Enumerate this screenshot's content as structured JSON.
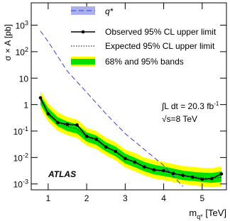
{
  "chart_data": {
    "type": "limit",
    "ylabel": "σ × A [pb]",
    "xlabel": {
      "main": "m",
      "sub": "q*",
      "unit": " [TeV]"
    },
    "xlim": [
      0.56,
      5.63
    ],
    "xticks": [
      1,
      2,
      3,
      4,
      5
    ],
    "ylim": [
      0.0006,
      7000
    ],
    "ylog": true,
    "yticks": [
      {
        "value": 0.001,
        "label": "10-3"
      },
      {
        "value": 0.01,
        "label": "10-2"
      },
      {
        "value": 0.1,
        "label": "10-1"
      },
      1,
      10,
      {
        "value": 100,
        "label": "102"
      },
      {
        "value": 1000,
        "label": "103"
      }
    ],
    "series": [
      {
        "name": "q*",
        "color": "#3b3bd0",
        "style": "dashed",
        "x": [
          0.8,
          1.0,
          1.5,
          2.0,
          2.5,
          3.0,
          3.5,
          4.0,
          4.5
        ],
        "values": [
          600,
          240,
          18,
          2.9,
          0.45,
          0.08,
          0.02,
          0.005,
          0.0008
        ]
      },
      {
        "name": "Observed 95% CL upper limit",
        "color": "#000000",
        "style": "markers",
        "x": [
          0.8,
          1.0,
          1.25,
          1.5,
          1.75,
          2.0,
          2.25,
          2.5,
          2.75,
          3.0,
          3.25,
          3.5,
          3.75,
          4.0,
          4.25,
          4.5,
          4.75,
          5.0,
          5.25,
          5.5
        ],
        "values": [
          1.8,
          0.45,
          0.21,
          0.18,
          0.17,
          0.063,
          0.049,
          0.025,
          0.017,
          0.0091,
          0.0067,
          0.0044,
          0.0034,
          0.0032,
          0.0025,
          0.0021,
          0.0018,
          0.0015,
          0.0016,
          0.0024
        ]
      },
      {
        "name": "Expected 95% CL upper limit",
        "color": "#000000",
        "style": "dotted",
        "x": [
          0.8,
          1.0,
          1.25,
          1.5,
          1.75,
          2.0,
          2.25,
          2.5,
          2.75,
          3.0,
          3.25,
          3.5,
          3.75,
          4.0,
          4.25,
          4.5,
          4.75,
          5.0,
          5.25,
          5.5
        ],
        "values": [
          1.5,
          0.5,
          0.22,
          0.15,
          0.12,
          0.06,
          0.045,
          0.025,
          0.017,
          0.009,
          0.0065,
          0.0045,
          0.0035,
          0.003,
          0.0025,
          0.0021,
          0.0019,
          0.0017,
          0.0016,
          0.0018
        ]
      }
    ],
    "bands": {
      "name": "68% and 95% bands",
      "x": [
        0.8,
        1.0,
        1.25,
        1.5,
        1.75,
        2.0,
        2.25,
        2.5,
        2.75,
        3.0,
        3.25,
        3.5,
        3.75,
        4.0,
        4.25,
        4.5,
        4.75,
        5.0,
        5.25,
        5.5
      ],
      "outer": {
        "color": "#ffff00",
        "low": [
          0.7,
          0.23,
          0.1,
          0.07,
          0.055,
          0.028,
          0.021,
          0.012,
          0.0078,
          0.0042,
          0.003,
          0.0021,
          0.0016,
          0.0014,
          0.0012,
          0.00098,
          0.0009,
          0.0008,
          0.00075,
          0.0008
        ],
        "high": [
          3.2,
          1.1,
          0.5,
          0.34,
          0.27,
          0.13,
          0.1,
          0.056,
          0.038,
          0.02,
          0.015,
          0.01,
          0.008,
          0.0068,
          0.0057,
          0.0048,
          0.0044,
          0.0041,
          0.004,
          0.0046
        ]
      },
      "inner": {
        "color": "#00e000",
        "low": [
          1.0,
          0.33,
          0.15,
          0.1,
          0.08,
          0.04,
          0.03,
          0.017,
          0.011,
          0.006,
          0.0043,
          0.003,
          0.0023,
          0.002,
          0.0017,
          0.0014,
          0.0013,
          0.0012,
          0.0011,
          0.0012
        ],
        "high": [
          2.2,
          0.75,
          0.33,
          0.23,
          0.18,
          0.09,
          0.068,
          0.038,
          0.026,
          0.014,
          0.0098,
          0.0068,
          0.0053,
          0.0046,
          0.0038,
          0.0032,
          0.0029,
          0.0027,
          0.0026,
          0.003
        ]
      }
    },
    "annotations": {
      "experiment": "ATLAS",
      "lumi": {
        "text": "∫L dt = 20.3 fb",
        "sup": "-1"
      },
      "energy": "√s=8 TeV"
    }
  }
}
